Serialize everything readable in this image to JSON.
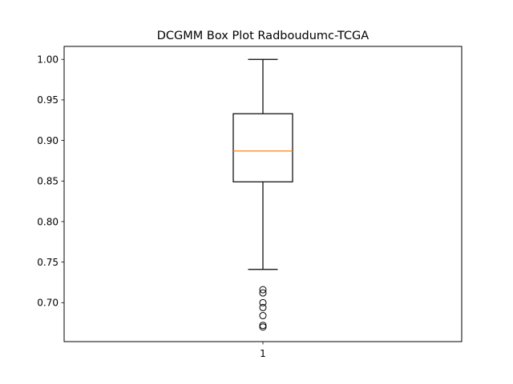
{
  "chart_data": {
    "type": "box",
    "title": "DCGMM Box Plot Radboudumc-TCGA",
    "xlabel": "",
    "ylabel": "",
    "categories": [
      "1"
    ],
    "ylim": [
      0.652,
      1.016
    ],
    "yticks": [
      0.7,
      0.75,
      0.8,
      0.85,
      0.9,
      0.95,
      1.0
    ],
    "ytick_labels": [
      "0.70",
      "0.75",
      "0.80",
      "0.85",
      "0.90",
      "0.95",
      "1.00"
    ],
    "boxes": [
      {
        "category": "1",
        "whisker_low": 0.741,
        "q1": 0.849,
        "median": 0.887,
        "q3": 0.933,
        "whisker_high": 1.0,
        "outliers": [
          0.716,
          0.712,
          0.7,
          0.694,
          0.684,
          0.672,
          0.67
        ]
      }
    ],
    "grid": false,
    "colors": {
      "box": "#000000",
      "median": "#ff7f0e",
      "outlier": "#000000"
    }
  }
}
